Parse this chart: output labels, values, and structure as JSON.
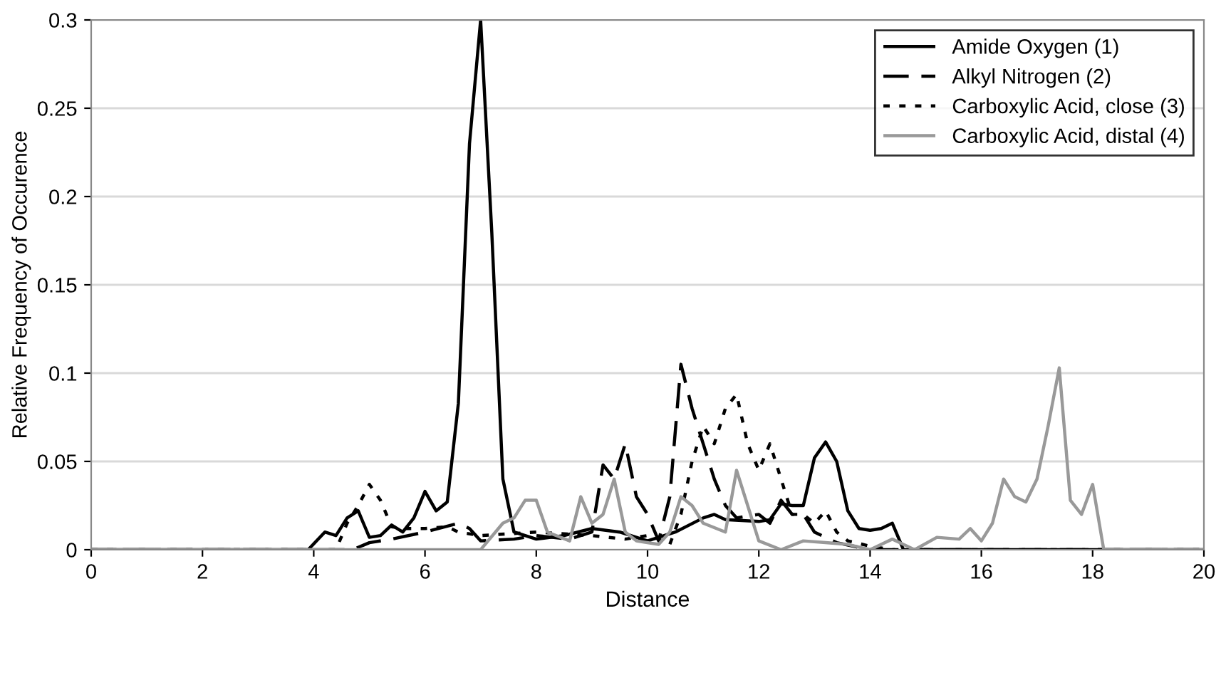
{
  "chart_data": {
    "type": "line",
    "xlabel": "Distance",
    "ylabel": "Relative Frequency of Occurence",
    "xlim": [
      0,
      20
    ],
    "xticks": [
      0,
      2,
      4,
      6,
      8,
      10,
      12,
      14,
      16,
      18,
      20
    ],
    "ylim": [
      0,
      0.3
    ],
    "yticks": [
      0,
      0.05,
      0.1,
      0.15,
      0.2,
      0.25,
      0.3
    ],
    "grid": "y",
    "legend": "top right",
    "marker": "none",
    "series": [
      {
        "name": "Amide Oxygen (1)",
        "color": "#000000",
        "line_style": "solid",
        "x": [
          0,
          3.9,
          4.2,
          4.4,
          4.6,
          4.8,
          5.0,
          5.2,
          5.4,
          5.6,
          5.8,
          6.0,
          6.2,
          6.4,
          6.6,
          6.8,
          7.0,
          7.2,
          7.4,
          7.6,
          8.0,
          8.5,
          9.0,
          9.5,
          10.0,
          10.5,
          11.0,
          11.2,
          11.4,
          12.0,
          12.2,
          12.4,
          12.6,
          12.8,
          13.0,
          13.2,
          13.4,
          13.6,
          13.8,
          14.0,
          14.2,
          14.4,
          14.6,
          20
        ],
        "values": [
          0,
          0,
          0.01,
          0.008,
          0.018,
          0.022,
          0.007,
          0.008,
          0.014,
          0.01,
          0.018,
          0.033,
          0.022,
          0.027,
          0.083,
          0.23,
          0.3,
          0.18,
          0.04,
          0.01,
          0.006,
          0.008,
          0.012,
          0.01,
          0.005,
          0.01,
          0.018,
          0.02,
          0.017,
          0.016,
          0.017,
          0.026,
          0.025,
          0.025,
          0.052,
          0.061,
          0.05,
          0.022,
          0.012,
          0.011,
          0.012,
          0.015,
          0,
          0
        ]
      },
      {
        "name": "Alkyl Nitrogen (2)",
        "color": "#000000",
        "line_style": "dashed",
        "x": [
          0,
          4.7,
          5.0,
          5.4,
          6.0,
          6.6,
          6.8,
          7.0,
          7.6,
          8.0,
          8.6,
          9.0,
          9.2,
          9.4,
          9.6,
          9.8,
          10.0,
          10.2,
          10.4,
          10.6,
          10.8,
          11.0,
          11.2,
          11.4,
          11.6,
          12.0,
          12.2,
          12.4,
          12.6,
          12.8,
          13.0,
          13.4,
          14.0,
          20
        ],
        "values": [
          0,
          0,
          0.004,
          0.006,
          0.01,
          0.015,
          0.012,
          0.005,
          0.006,
          0.008,
          0.006,
          0.01,
          0.048,
          0.04,
          0.06,
          0.03,
          0.02,
          0.005,
          0.03,
          0.105,
          0.08,
          0.06,
          0.04,
          0.025,
          0.018,
          0.02,
          0.015,
          0.028,
          0.02,
          0.02,
          0.01,
          0.004,
          0,
          0
        ]
      },
      {
        "name": "Carboxylic Acid, close (3)",
        "color": "#000000",
        "line_style": "dotted",
        "x": [
          0,
          4.4,
          4.6,
          4.8,
          5.0,
          5.2,
          5.4,
          5.6,
          6.0,
          6.4,
          6.6,
          7.0,
          8.0,
          9.0,
          9.6,
          10.0,
          10.2,
          10.4,
          10.6,
          10.8,
          11.0,
          11.2,
          11.4,
          11.6,
          11.8,
          12.0,
          12.2,
          12.4,
          12.6,
          12.8,
          13.0,
          13.2,
          13.4,
          13.6,
          14.0,
          14.4,
          20
        ],
        "values": [
          0,
          0,
          0.015,
          0.025,
          0.037,
          0.028,
          0.013,
          0.012,
          0.012,
          0.013,
          0.01,
          0.008,
          0.01,
          0.008,
          0.006,
          0.008,
          0.006,
          0.003,
          0.02,
          0.05,
          0.07,
          0.06,
          0.08,
          0.088,
          0.06,
          0.045,
          0.06,
          0.04,
          0.02,
          0.02,
          0.015,
          0.022,
          0.01,
          0.005,
          0.002,
          0,
          0
        ]
      },
      {
        "name": "Carboxylic Acid, distal (4)",
        "color": "#999999",
        "line_style": "solid",
        "x": [
          0,
          7.0,
          7.4,
          7.6,
          7.8,
          8.0,
          8.2,
          8.6,
          8.8,
          9.0,
          9.2,
          9.4,
          9.6,
          9.8,
          10.2,
          10.4,
          10.6,
          10.8,
          11.0,
          11.4,
          11.6,
          11.8,
          12.0,
          12.4,
          12.8,
          13.2,
          13.6,
          14.0,
          14.4,
          14.8,
          15.2,
          15.6,
          15.8,
          16.0,
          16.2,
          16.4,
          16.6,
          16.8,
          17.0,
          17.2,
          17.4,
          17.6,
          17.8,
          18.0,
          18.2,
          20
        ],
        "values": [
          0,
          0,
          0.015,
          0.018,
          0.028,
          0.028,
          0.01,
          0.005,
          0.03,
          0.015,
          0.02,
          0.04,
          0.01,
          0.005,
          0.003,
          0.01,
          0.03,
          0.025,
          0.015,
          0.01,
          0.045,
          0.025,
          0.005,
          0,
          0.005,
          0.004,
          0.003,
          0,
          0.006,
          0,
          0.007,
          0.006,
          0.012,
          0.005,
          0.015,
          0.04,
          0.03,
          0.027,
          0.04,
          0.07,
          0.103,
          0.028,
          0.02,
          0.037,
          0,
          0
        ]
      }
    ]
  }
}
